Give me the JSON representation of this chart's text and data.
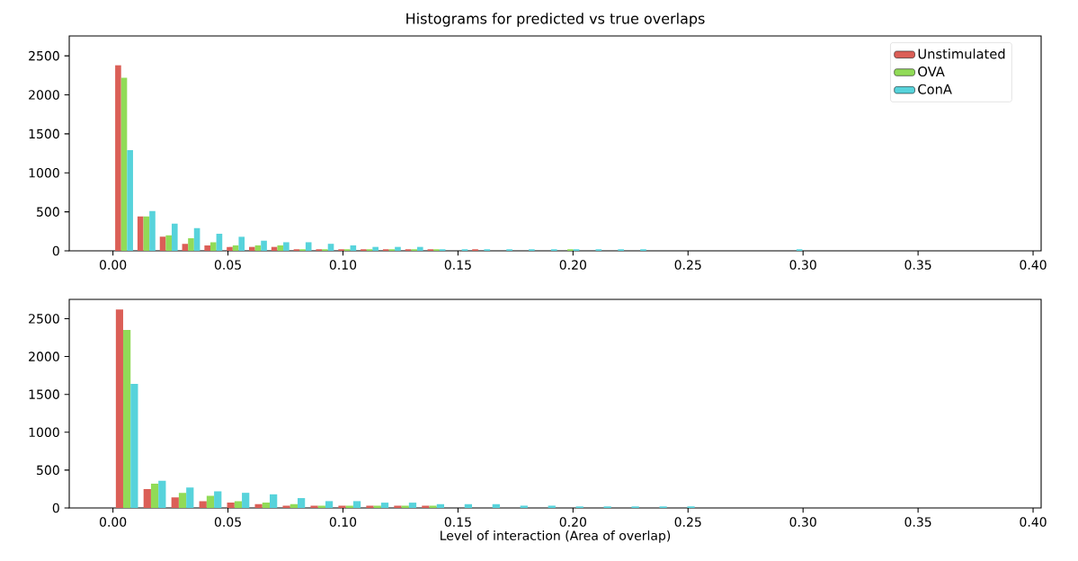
{
  "chart_data": [
    {
      "type": "histogram",
      "title": "Histograms for predicted vs true overlaps",
      "bins": [
        0,
        0.0097,
        0.0194,
        0.0291,
        0.0388,
        0.0485,
        0.0582,
        0.0679,
        0.0776,
        0.0873,
        0.097,
        0.1067,
        0.1164,
        0.1261,
        0.1358,
        0.1455,
        0.1552,
        0.1649,
        0.1746,
        0.1843,
        0.194,
        0.2037,
        0.2134,
        0.2231,
        0.2328,
        0.2425,
        0.2522,
        0.2619,
        0.2716,
        0.2813,
        0.291,
        0.3007
      ],
      "series": [
        {
          "name": "Unstimulated",
          "color": "#db5f57",
          "values": [
            2380,
            440,
            180,
            90,
            70,
            50,
            50,
            50,
            20,
            20,
            20,
            20,
            20,
            20,
            20,
            0,
            20,
            0,
            0,
            0,
            0,
            0,
            0,
            0,
            0,
            0,
            0,
            0,
            0,
            0,
            0
          ]
        },
        {
          "name": "OVA",
          "color": "#91db57",
          "values": [
            2220,
            440,
            200,
            160,
            110,
            70,
            70,
            70,
            20,
            20,
            20,
            20,
            20,
            20,
            20,
            0,
            0,
            0,
            0,
            0,
            20,
            0,
            0,
            0,
            0,
            0,
            0,
            0,
            0,
            0,
            0
          ]
        },
        {
          "name": "ConA",
          "color": "#57d3db",
          "values": [
            1290,
            510,
            350,
            290,
            220,
            180,
            130,
            110,
            110,
            90,
            70,
            50,
            50,
            50,
            20,
            20,
            20,
            20,
            20,
            20,
            20,
            20,
            20,
            20,
            0,
            0,
            0,
            0,
            0,
            0,
            20
          ]
        }
      ],
      "xlim": [
        -0.019,
        0.4035
      ],
      "ylim": [
        0,
        2755
      ],
      "xticks": [
        {
          "value": 0,
          "label": "0.00"
        },
        {
          "value": 0.05,
          "label": "0.05"
        },
        {
          "value": 0.1,
          "label": "0.10"
        },
        {
          "value": 0.15,
          "label": "0.15"
        },
        {
          "value": 0.2,
          "label": "0.20"
        },
        {
          "value": 0.25,
          "label": "0.25"
        },
        {
          "value": 0.3,
          "label": "0.30"
        },
        {
          "value": 0.35,
          "label": "0.35"
        },
        {
          "value": 0.4,
          "label": "0.40"
        }
      ],
      "yticks": [
        0,
        500,
        1000,
        1500,
        2000,
        2500
      ],
      "legend": "top right"
    },
    {
      "type": "histogram",
      "xlabel": "Level of interaction (Area of overlap)",
      "bins": [
        0,
        0.0121,
        0.0242,
        0.0363,
        0.0484,
        0.0605,
        0.0726,
        0.0847,
        0.0968,
        0.1089,
        0.121,
        0.1331,
        0.1452,
        0.1573,
        0.1694,
        0.1815,
        0.1936,
        0.2057,
        0.2178,
        0.2299,
        0.242,
        0.2541
      ],
      "series": [
        {
          "color": "#db5f57",
          "values": [
            2620,
            250,
            140,
            90,
            70,
            50,
            30,
            30,
            30,
            30,
            30,
            30,
            0,
            0,
            0,
            0,
            0,
            0,
            0,
            0,
            0
          ]
        },
        {
          "color": "#91db57",
          "values": [
            2350,
            320,
            200,
            160,
            90,
            70,
            50,
            30,
            30,
            30,
            30,
            30,
            0,
            0,
            0,
            0,
            0,
            0,
            0,
            0,
            0
          ]
        },
        {
          "color": "#57d3db",
          "values": [
            1640,
            360,
            270,
            220,
            200,
            180,
            130,
            90,
            90,
            70,
            70,
            50,
            50,
            50,
            30,
            30,
            20,
            20,
            20,
            20,
            20
          ]
        }
      ],
      "xlim": [
        -0.019,
        0.4035
      ],
      "ylim": [
        0,
        2755
      ],
      "xticks": [
        {
          "value": 0,
          "label": "0.00"
        },
        {
          "value": 0.05,
          "label": "0.05"
        },
        {
          "value": 0.1,
          "label": "0.10"
        },
        {
          "value": 0.15,
          "label": "0.15"
        },
        {
          "value": 0.2,
          "label": "0.20"
        },
        {
          "value": 0.25,
          "label": "0.25"
        },
        {
          "value": 0.3,
          "label": "0.30"
        },
        {
          "value": 0.35,
          "label": "0.35"
        },
        {
          "value": 0.4,
          "label": "0.40"
        }
      ],
      "yticks": [
        0,
        500,
        1000,
        1500,
        2000,
        2500
      ]
    }
  ]
}
